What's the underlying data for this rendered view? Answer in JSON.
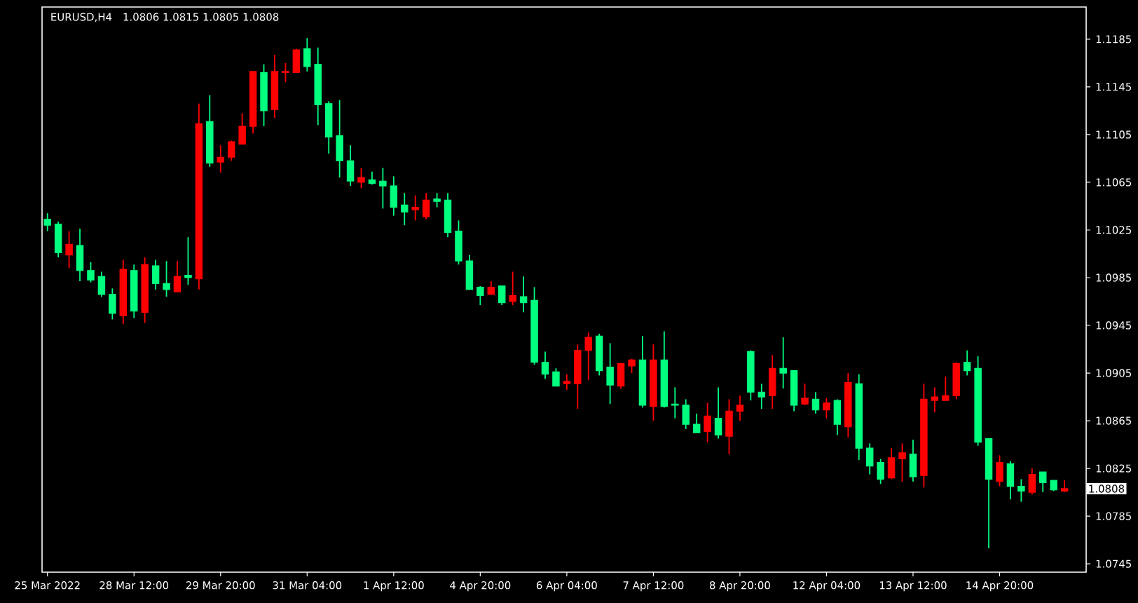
{
  "chart_data": {
    "type": "candlestick",
    "title": "EURUSD,H4",
    "subtitle": "1.0806 1.0815 1.0805 1.0808",
    "categories": [
      "25 Mar 2022",
      null,
      null,
      null,
      null,
      null,
      null,
      null,
      "28 Mar 12:00",
      null,
      null,
      null,
      null,
      null,
      null,
      null,
      "29 Mar 20:00",
      null,
      null,
      null,
      null,
      null,
      null,
      null,
      "31 Mar 04:00",
      null,
      null,
      null,
      null,
      null,
      null,
      null,
      "1 Apr 12:00",
      null,
      null,
      null,
      null,
      null,
      null,
      null,
      "4 Apr 20:00",
      null,
      null,
      null,
      null,
      null,
      null,
      null,
      "6 Apr 04:00",
      null,
      null,
      null,
      null,
      null,
      null,
      null,
      "7 Apr 12:00",
      null,
      null,
      null,
      null,
      null,
      null,
      null,
      "8 Apr 20:00",
      null,
      null,
      null,
      null,
      null,
      null,
      null,
      "12 Apr 04:00",
      null,
      null,
      null,
      null,
      null,
      null,
      null,
      "13 Apr 12:00",
      null,
      null,
      null,
      null,
      null,
      null,
      null,
      "14 Apr 20:00",
      null,
      null,
      null,
      null,
      null,
      null
    ],
    "ohlc": [
      [
        1.1034,
        1.1039,
        1.1024,
        1.1029
      ],
      [
        1.103,
        1.1032,
        1.1002,
        1.1006
      ],
      [
        1.1004,
        1.1024,
        1.0993,
        1.1013
      ],
      [
        1.1012,
        1.1026,
        1.0982,
        1.0991
      ],
      [
        1.0991,
        1.0998,
        1.0981,
        1.0983
      ],
      [
        1.0986,
        1.099,
        1.0969,
        1.0971
      ],
      [
        1.0971,
        1.0976,
        1.095,
        1.0955
      ],
      [
        1.0953,
        1.1,
        1.0946,
        1.0992
      ],
      [
        1.0991,
        1.0996,
        1.0951,
        1.0957
      ],
      [
        1.0956,
        1.1002,
        1.0947,
        1.0996
      ],
      [
        1.0995,
        1.1,
        1.0975,
        1.098
      ],
      [
        1.098,
        1.0999,
        1.0969,
        1.0975
      ],
      [
        1.0973,
        1.0999,
        1.0973,
        1.0986
      ],
      [
        1.0987,
        1.1019,
        1.0979,
        1.0985
      ],
      [
        1.0984,
        1.1131,
        1.0975,
        1.1114
      ],
      [
        1.1116,
        1.1138,
        1.1078,
        1.1081
      ],
      [
        1.1082,
        1.1096,
        1.1073,
        1.1086
      ],
      [
        1.1086,
        1.11,
        1.1083,
        1.1099
      ],
      [
        1.1097,
        1.1123,
        1.1097,
        1.1112
      ],
      [
        1.1112,
        1.1158,
        1.1106,
        1.1158
      ],
      [
        1.1157,
        1.1164,
        1.1112,
        1.1125
      ],
      [
        1.1126,
        1.1172,
        1.1119,
        1.1158
      ],
      [
        1.1157,
        1.1165,
        1.1149,
        1.1158
      ],
      [
        1.1157,
        1.1177,
        1.1157,
        1.1176
      ],
      [
        1.1177,
        1.1186,
        1.1158,
        1.1162
      ],
      [
        1.1164,
        1.1178,
        1.1113,
        1.113
      ],
      [
        1.1131,
        1.1133,
        1.1089,
        1.1103
      ],
      [
        1.1104,
        1.1134,
        1.1069,
        1.1083
      ],
      [
        1.1083,
        1.1096,
        1.1062,
        1.1066
      ],
      [
        1.1065,
        1.1077,
        1.106,
        1.1069
      ],
      [
        1.1067,
        1.1074,
        1.1063,
        1.1064
      ],
      [
        1.1066,
        1.1077,
        1.1043,
        1.1062
      ],
      [
        1.1062,
        1.107,
        1.1037,
        1.1044
      ],
      [
        1.1046,
        1.1056,
        1.1029,
        1.104
      ],
      [
        1.1042,
        1.1054,
        1.1033,
        1.1044
      ],
      [
        1.1036,
        1.1056,
        1.1034,
        1.105
      ],
      [
        1.1051,
        1.1056,
        1.1044,
        1.1049
      ],
      [
        1.105,
        1.1056,
        1.1019,
        1.1023
      ],
      [
        1.1024,
        1.1033,
        1.0996,
        1.0999
      ],
      [
        1.0999,
        1.1004,
        1.0975,
        1.0975
      ],
      [
        1.0977,
        1.0978,
        1.0962,
        1.097
      ],
      [
        1.0971,
        1.0982,
        1.0971,
        1.0977
      ],
      [
        1.0978,
        1.0978,
        1.0962,
        1.0964
      ],
      [
        1.0965,
        1.099,
        1.0962,
        1.097
      ],
      [
        1.0969,
        1.0986,
        1.0956,
        1.0964
      ],
      [
        1.0966,
        1.0977,
        1.0912,
        1.0914
      ],
      [
        1.0914,
        1.0923,
        1.09,
        1.0904
      ],
      [
        1.0906,
        1.0909,
        1.0894,
        1.0894
      ],
      [
        1.0896,
        1.0904,
        1.0891,
        1.0898
      ],
      [
        1.0896,
        1.0929,
        1.0875,
        1.0924
      ],
      [
        1.0924,
        1.0939,
        1.0899,
        1.0935
      ],
      [
        1.0936,
        1.0938,
        1.0903,
        1.0907
      ],
      [
        1.091,
        1.093,
        1.0879,
        1.0895
      ],
      [
        1.0894,
        1.0913,
        1.0892,
        1.0913
      ],
      [
        1.0911,
        1.0917,
        1.0905,
        1.0916
      ],
      [
        1.0916,
        1.0936,
        1.0876,
        1.0878
      ],
      [
        1.0877,
        1.0929,
        1.0865,
        1.0916
      ],
      [
        1.0916,
        1.094,
        1.0876,
        1.0877
      ],
      [
        1.0879,
        1.0893,
        1.0867,
        1.0878
      ],
      [
        1.0878,
        1.0883,
        1.0858,
        1.0862
      ],
      [
        1.0862,
        1.0871,
        1.0855,
        1.0855
      ],
      [
        1.0856,
        1.088,
        1.0847,
        1.0869
      ],
      [
        1.0867,
        1.0893,
        1.085,
        1.0853
      ],
      [
        1.0852,
        1.0883,
        1.0837,
        1.0873
      ],
      [
        1.0873,
        1.0886,
        1.0865,
        1.0878
      ],
      [
        1.0923,
        1.0924,
        1.0882,
        1.0889
      ],
      [
        1.0889,
        1.0896,
        1.0875,
        1.0885
      ],
      [
        1.0886,
        1.092,
        1.0875,
        1.0909
      ],
      [
        1.0909,
        1.0935,
        1.0892,
        1.0905
      ],
      [
        1.0907,
        1.0907,
        1.0873,
        1.0878
      ],
      [
        1.0879,
        1.0896,
        1.0878,
        1.0884
      ],
      [
        1.0883,
        1.0889,
        1.0871,
        1.0874
      ],
      [
        1.0874,
        1.0884,
        1.0867,
        1.088
      ],
      [
        1.0882,
        1.0883,
        1.0853,
        1.0862
      ],
      [
        1.086,
        1.0905,
        1.0851,
        1.0897
      ],
      [
        1.0896,
        1.0904,
        1.0832,
        1.0842
      ],
      [
        1.0842,
        1.0846,
        1.082,
        1.0827
      ],
      [
        1.083,
        1.0833,
        1.0812,
        1.0816
      ],
      [
        1.0817,
        1.0842,
        1.0816,
        1.0834
      ],
      [
        1.0833,
        1.0846,
        1.0814,
        1.0838
      ],
      [
        1.0837,
        1.0849,
        1.0814,
        1.0818
      ],
      [
        1.0819,
        1.0896,
        1.0809,
        1.0883
      ],
      [
        1.0882,
        1.0893,
        1.0872,
        1.0885
      ],
      [
        1.0882,
        1.0902,
        1.0882,
        1.0886
      ],
      [
        1.0886,
        1.0914,
        1.0883,
        1.0913
      ],
      [
        1.0914,
        1.0924,
        1.0903,
        1.0907
      ],
      [
        1.0909,
        1.0919,
        1.0844,
        1.0847
      ],
      [
        1.085,
        1.085,
        1.0758,
        1.0816
      ],
      [
        1.0814,
        1.0836,
        1.081,
        1.083
      ],
      [
        1.0829,
        1.0831,
        1.0799,
        1.081
      ],
      [
        1.081,
        1.0816,
        1.0797,
        1.0806
      ],
      [
        1.0805,
        1.0825,
        1.0803,
        1.082
      ],
      [
        1.0822,
        1.0822,
        1.0805,
        1.0813
      ],
      [
        1.0815,
        1.0815,
        1.0806,
        1.0807
      ],
      [
        1.0806,
        1.0815,
        1.0805,
        1.0808
      ]
    ],
    "colors": [
      "#00ff7f",
      "#00ff7f",
      "#ff0000",
      "#00ff7f",
      "#00ff7f",
      "#00ff7f",
      "#00ff7f",
      "#ff0000",
      "#00ff7f",
      "#ff0000",
      "#00ff7f",
      "#00ff7f",
      "#ff0000",
      "#00ff7f",
      "#ff0000",
      "#00ff7f",
      "#ff0000",
      "#ff0000",
      "#ff0000",
      "#ff0000",
      "#00ff7f",
      "#ff0000",
      "#ff0000",
      "#ff0000",
      "#00ff7f",
      "#00ff7f",
      "#00ff7f",
      "#00ff7f",
      "#00ff7f",
      "#ff0000",
      "#00ff7f",
      "#00ff7f",
      "#00ff7f",
      "#00ff7f",
      "#ff0000",
      "#ff0000",
      "#00ff7f",
      "#00ff7f",
      "#00ff7f",
      "#00ff7f",
      "#00ff7f",
      "#ff0000",
      "#00ff7f",
      "#ff0000",
      "#00ff7f",
      "#00ff7f",
      "#00ff7f",
      "#00ff7f",
      "#ff0000",
      "#ff0000",
      "#ff0000",
      "#00ff7f",
      "#00ff7f",
      "#ff0000",
      "#ff0000",
      "#00ff7f",
      "#ff0000",
      "#00ff7f",
      "#00ff7f",
      "#00ff7f",
      "#00ff7f",
      "#ff0000",
      "#00ff7f",
      "#ff0000",
      "#ff0000",
      "#00ff7f",
      "#00ff7f",
      "#ff0000",
      "#00ff7f",
      "#00ff7f",
      "#ff0000",
      "#00ff7f",
      "#ff0000",
      "#00ff7f",
      "#ff0000",
      "#00ff7f",
      "#00ff7f",
      "#00ff7f",
      "#ff0000",
      "#ff0000",
      "#00ff7f",
      "#ff0000",
      "#ff0000",
      "#ff0000",
      "#ff0000",
      "#00ff7f",
      "#00ff7f",
      "#00ff7f",
      "#ff0000",
      "#00ff7f",
      "#00ff7f",
      "#ff0000",
      "#00ff7f",
      "#00ff7f",
      "#ff0000"
    ],
    "ylim": [
      1.0738,
      1.1212
    ],
    "yticks": [
      1.0745,
      1.0785,
      1.0825,
      1.0865,
      1.0905,
      1.0945,
      1.0985,
      1.1025,
      1.1065,
      1.1105,
      1.1145,
      1.1185
    ],
    "annotations": [
      "1.0808"
    ]
  }
}
